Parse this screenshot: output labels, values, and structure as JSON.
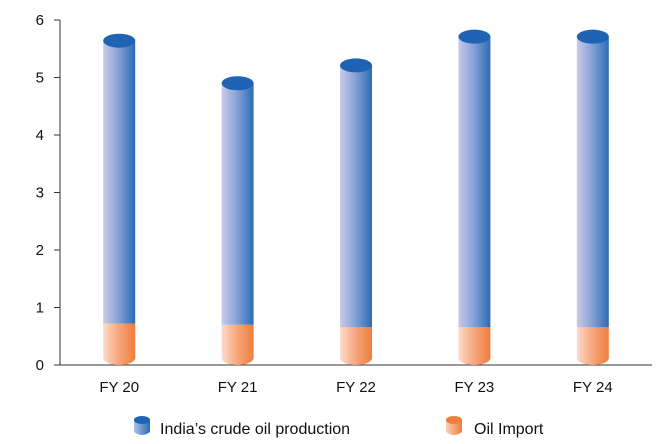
{
  "chart_data": {
    "type": "bar",
    "categories": [
      "FY 20",
      "FY 21",
      "FY 22",
      "FY 23",
      "FY 24"
    ],
    "series": [
      {
        "name": "India’s crude oil production",
        "values": [
          4.92,
          4.2,
          4.55,
          5.05,
          5.05
        ]
      },
      {
        "name": "Oil Import",
        "values": [
          0.72,
          0.7,
          0.66,
          0.66,
          0.66
        ]
      }
    ],
    "stacked": true,
    "ylim": [
      0,
      6
    ],
    "yticks": [
      "0",
      "1",
      "2",
      "3",
      "4",
      "5",
      "6"
    ],
    "grid": false,
    "legend_position": "bottom",
    "colors": {
      "production_light": "#c9cbe9",
      "production_dark": "#2a6cb6",
      "production_top": "#1f63b4",
      "import_light": "#fbd3bf",
      "import_dark": "#ef7d3c",
      "axis": "#333333"
    }
  }
}
